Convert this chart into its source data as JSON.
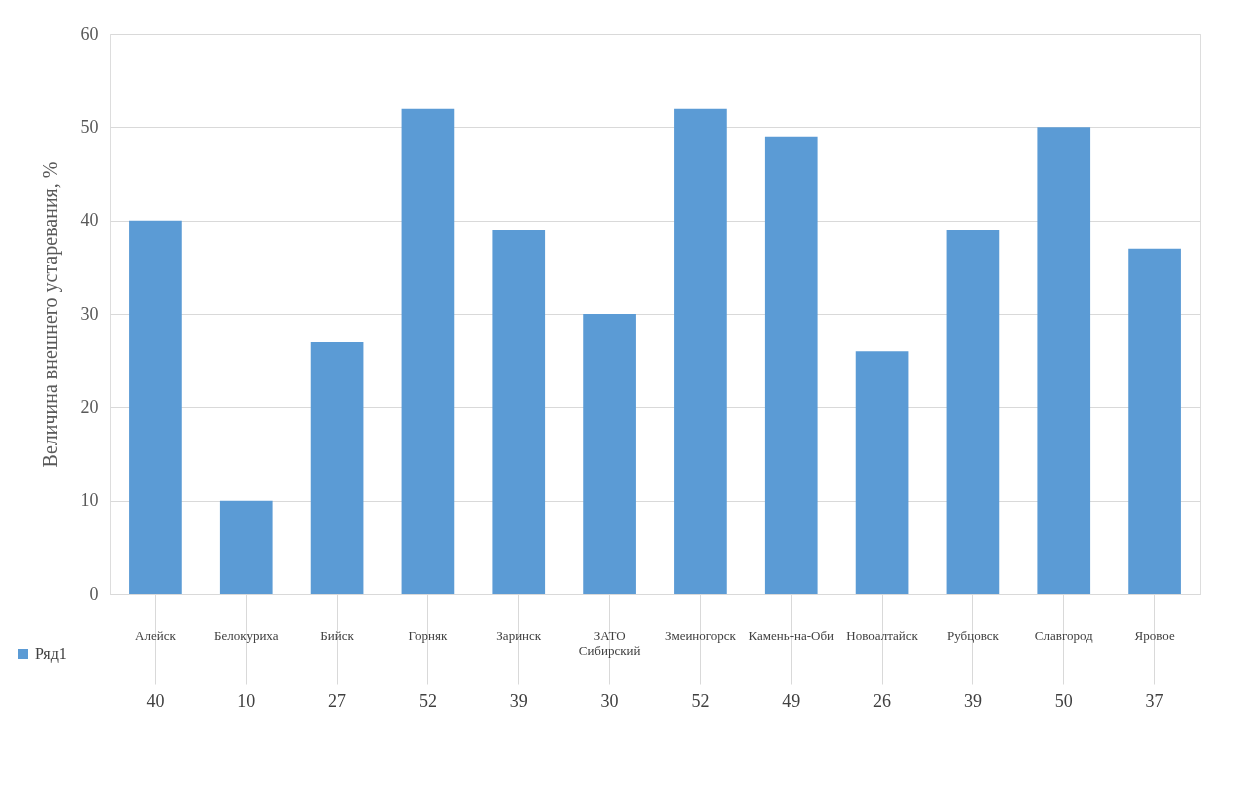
{
  "chart_data": {
    "type": "bar",
    "ylabel": "Величина внешнего устаревания, %",
    "categories": [
      "Алейск",
      "Белокуриха",
      "Бийск",
      "Горняк",
      "Заринск",
      "ЗАТО Сибирский",
      "Змеиногорск",
      "Камень-на-Оби",
      "Новоалтайск",
      "Рубцовск",
      "Славгород",
      "Яровое"
    ],
    "series": [
      {
        "name": "Ряд1",
        "color": "#5b9bd5",
        "values": [
          40,
          10,
          27,
          52,
          39,
          30,
          52,
          49,
          26,
          39,
          50,
          37
        ]
      }
    ],
    "ylim": [
      0,
      60
    ],
    "yticks": [
      0,
      10,
      20,
      30,
      40,
      50,
      60
    ],
    "grid": "y",
    "data_labels": true,
    "legend": "bottom left"
  }
}
